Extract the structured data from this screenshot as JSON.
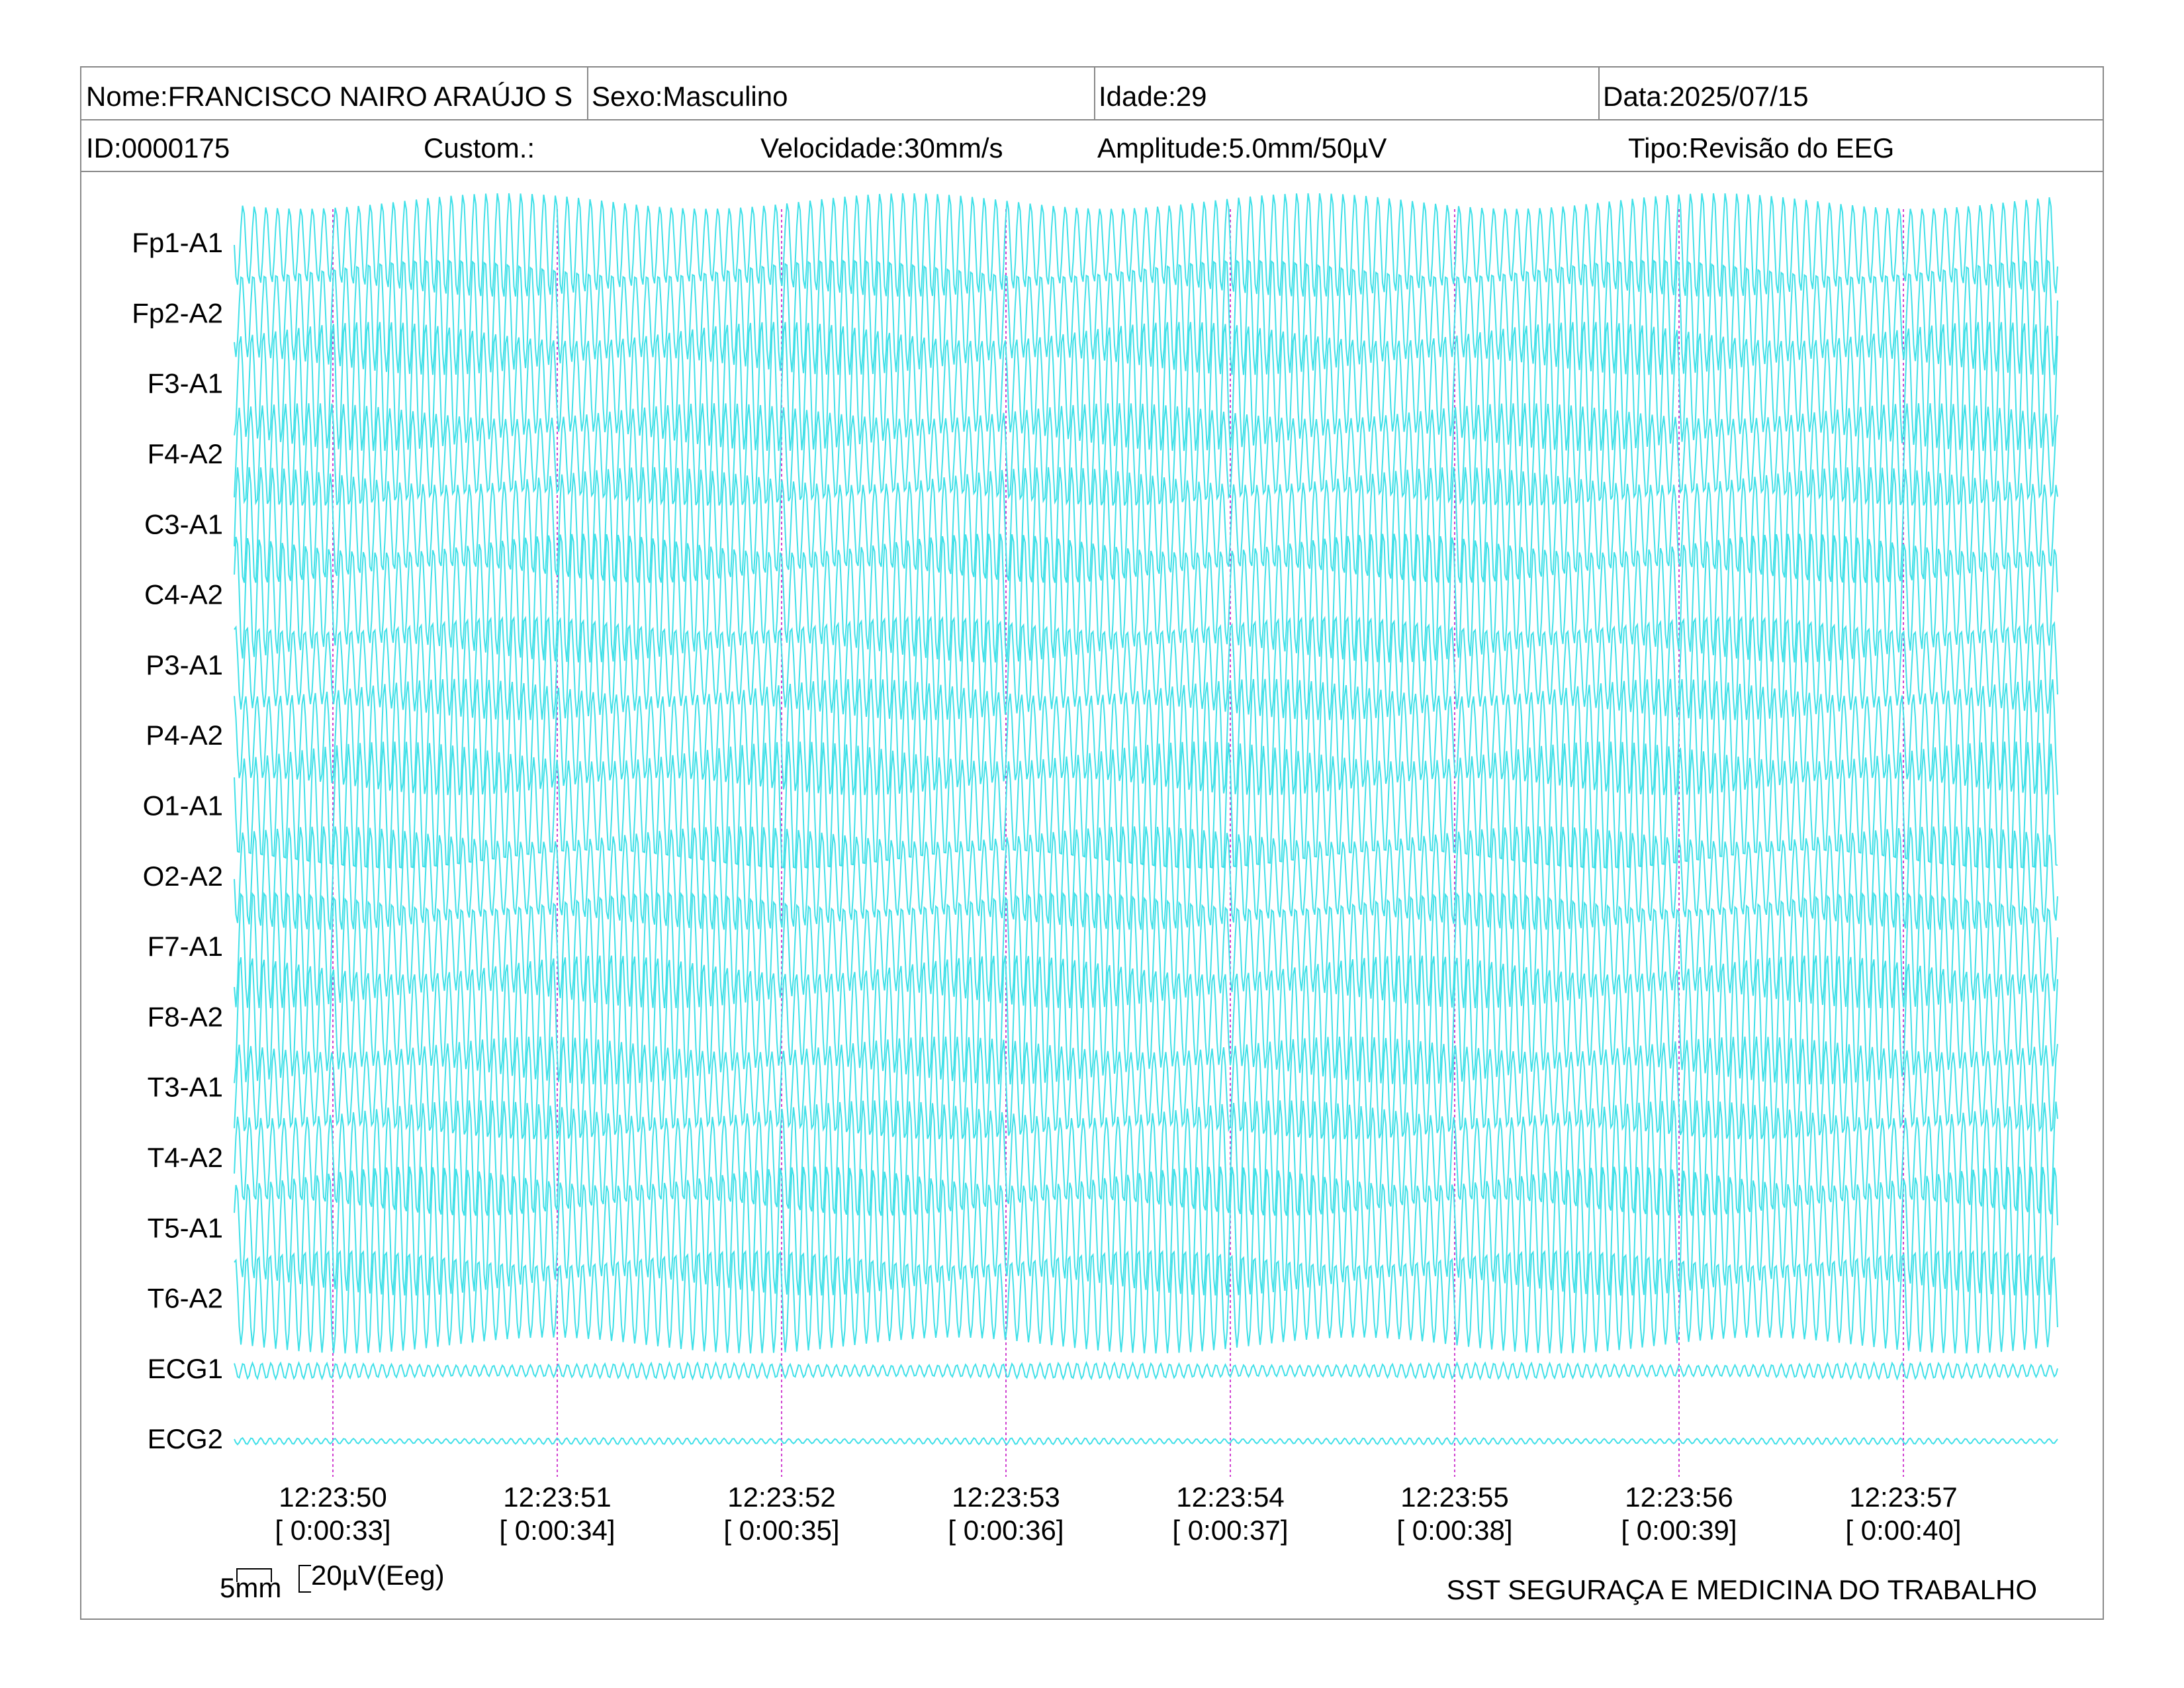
{
  "header": {
    "row1": [
      "Nome:FRANCISCO NAIRO ARAÚJO S",
      "Sexo:Masculino",
      "Idade:29",
      "Data:2025/07/15"
    ],
    "row2": [
      "ID:0000175",
      "Custom.:",
      "Velocidade:30mm/s",
      "Amplitude:5.0mm/50µV",
      "Tipo:Revisão do EEG"
    ]
  },
  "channels": [
    "Fp1-A1",
    "Fp2-A2",
    "F3-A1",
    "F4-A2",
    "C3-A1",
    "C4-A2",
    "P3-A1",
    "P4-A2",
    "O1-A1",
    "O2-A2",
    "F7-A1",
    "F8-A2",
    "T3-A1",
    "T4-A2",
    "T5-A1",
    "T6-A2",
    "ECG1",
    "ECG2"
  ],
  "time_marks": [
    {
      "time": "12:23:50",
      "elapsed": "[ 0:00:33]"
    },
    {
      "time": "12:23:51",
      "elapsed": "[ 0:00:34]"
    },
    {
      "time": "12:23:52",
      "elapsed": "[ 0:00:35]"
    },
    {
      "time": "12:23:53",
      "elapsed": "[ 0:00:36]"
    },
    {
      "time": "12:23:54",
      "elapsed": "[ 0:00:37]"
    },
    {
      "time": "12:23:55",
      "elapsed": "[ 0:00:38]"
    },
    {
      "time": "12:23:56",
      "elapsed": "[ 0:00:39]"
    },
    {
      "time": "12:23:57",
      "elapsed": "[ 0:00:40]"
    }
  ],
  "scale": {
    "width": "5mm",
    "amplitude": "20µV(Eeg)"
  },
  "footer": "SST SEGURAÇA E MEDICINA DO TRABALHO"
}
